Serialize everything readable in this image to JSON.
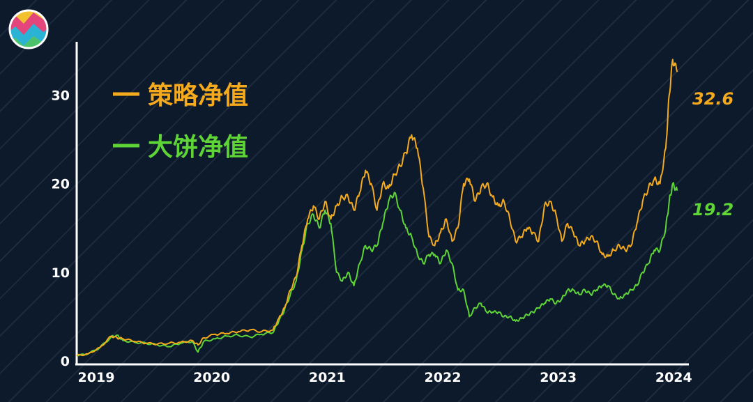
{
  "colors": {
    "background": "#0c1a2c",
    "strategy": "#f5a91c",
    "btc": "#5ed436",
    "axis": "#ffffff"
  },
  "logo": {
    "icon": "colorful-zigzag-logo-icon"
  },
  "chart_data": {
    "type": "line",
    "title": "",
    "xlabel": "",
    "ylabel": "",
    "x_ticks": [
      "2019",
      "2020",
      "2021",
      "2022",
      "2023",
      "2024"
    ],
    "y_ticks": [
      "0",
      "10",
      "20",
      "30"
    ],
    "xlim": [
      2019.0,
      2024.3
    ],
    "ylim": [
      0,
      36
    ],
    "grid": false,
    "legend": "top-left",
    "series": [
      {
        "name": "策略净值",
        "color": "#f5a91c",
        "end_label": "32.6",
        "x": [
          2019.0,
          2019.1,
          2019.2,
          2019.3,
          2019.35,
          2019.4,
          2019.5,
          2019.6,
          2019.7,
          2019.8,
          2019.9,
          2020.0,
          2020.05,
          2020.1,
          2020.2,
          2020.3,
          2020.4,
          2020.5,
          2020.6,
          2020.7,
          2020.75,
          2020.8,
          2020.85,
          2020.9,
          2020.95,
          2021.0,
          2021.05,
          2021.1,
          2021.15,
          2021.2,
          2021.25,
          2021.3,
          2021.35,
          2021.4,
          2021.45,
          2021.5,
          2021.55,
          2021.6,
          2021.65,
          2021.7,
          2021.75,
          2021.8,
          2021.85,
          2021.9,
          2021.95,
          2022.0,
          2022.05,
          2022.1,
          2022.15,
          2022.2,
          2022.25,
          2022.3,
          2022.35,
          2022.4,
          2022.45,
          2022.5,
          2022.55,
          2022.6,
          2022.65,
          2022.7,
          2022.75,
          2022.8,
          2022.85,
          2022.9,
          2022.95,
          2023.0,
          2023.05,
          2023.1,
          2023.15,
          2023.2,
          2023.25,
          2023.3,
          2023.35,
          2023.4,
          2023.45,
          2023.5,
          2023.55,
          2023.6,
          2023.65,
          2023.7,
          2023.75,
          2023.8,
          2023.85,
          2023.9,
          2023.95,
          2024.0,
          2024.05,
          2024.1,
          2024.13,
          2024.16,
          2024.2
        ],
        "y": [
          0.6,
          0.8,
          1.5,
          2.8,
          2.6,
          2.5,
          2.2,
          2.0,
          1.9,
          2.0,
          2.1,
          2.3,
          1.8,
          2.6,
          3.0,
          3.1,
          3.3,
          3.5,
          3.3,
          3.5,
          4.8,
          6.0,
          8.0,
          9.5,
          13.0,
          16.0,
          17.5,
          16.0,
          18.0,
          16.0,
          17.5,
          18.5,
          18.5,
          17.0,
          19.0,
          21.5,
          20.0,
          17.0,
          20.0,
          19.5,
          21.0,
          22.0,
          23.5,
          25.5,
          24.0,
          19.5,
          14.0,
          13.0,
          14.5,
          16.0,
          13.5,
          15.0,
          20.0,
          20.5,
          18.0,
          19.5,
          20.0,
          18.5,
          17.5,
          18.0,
          16.0,
          13.5,
          14.0,
          15.0,
          14.5,
          13.5,
          17.5,
          18.0,
          16.5,
          13.5,
          15.5,
          14.5,
          13.0,
          13.5,
          14.0,
          13.5,
          12.0,
          11.8,
          12.5,
          13.0,
          12.5,
          13.0,
          15.5,
          18.0,
          19.5,
          20.5,
          20.0,
          24.0,
          30.0,
          34.0,
          32.6
        ]
      },
      {
        "name": "大饼净值",
        "color": "#5ed436",
        "end_label": "19.2",
        "x": [
          2019.0,
          2019.1,
          2019.2,
          2019.3,
          2019.35,
          2019.4,
          2019.5,
          2019.6,
          2019.7,
          2019.8,
          2019.9,
          2020.0,
          2020.05,
          2020.1,
          2020.2,
          2020.3,
          2020.4,
          2020.5,
          2020.6,
          2020.7,
          2020.75,
          2020.8,
          2020.85,
          2020.9,
          2020.95,
          2021.0,
          2021.05,
          2021.1,
          2021.15,
          2021.2,
          2021.25,
          2021.3,
          2021.35,
          2021.4,
          2021.45,
          2021.5,
          2021.55,
          2021.6,
          2021.65,
          2021.7,
          2021.75,
          2021.8,
          2021.85,
          2021.9,
          2021.95,
          2022.0,
          2022.05,
          2022.1,
          2022.15,
          2022.2,
          2022.25,
          2022.3,
          2022.35,
          2022.4,
          2022.45,
          2022.5,
          2022.55,
          2022.6,
          2022.65,
          2022.7,
          2022.75,
          2022.8,
          2022.85,
          2022.9,
          2022.95,
          2023.0,
          2023.05,
          2023.1,
          2023.15,
          2023.2,
          2023.25,
          2023.3,
          2023.35,
          2023.4,
          2023.45,
          2023.5,
          2023.55,
          2023.6,
          2023.65,
          2023.7,
          2023.75,
          2023.8,
          2023.85,
          2023.9,
          2023.95,
          2024.0,
          2024.05,
          2024.1,
          2024.13,
          2024.16,
          2024.2
        ],
        "y": [
          0.6,
          0.8,
          1.5,
          2.7,
          2.9,
          2.3,
          2.1,
          2.0,
          1.8,
          1.6,
          2.0,
          2.2,
          1.0,
          2.2,
          2.5,
          2.8,
          2.9,
          2.7,
          3.0,
          3.2,
          4.5,
          5.8,
          7.5,
          9.0,
          12.5,
          15.5,
          16.5,
          15.0,
          17.0,
          15.5,
          10.0,
          9.0,
          10.0,
          8.5,
          11.0,
          13.0,
          12.5,
          13.0,
          15.5,
          18.0,
          19.0,
          17.0,
          15.0,
          14.0,
          12.0,
          11.0,
          12.0,
          12.0,
          11.0,
          12.5,
          11.0,
          8.0,
          8.0,
          5.0,
          6.0,
          6.5,
          5.5,
          5.5,
          5.5,
          5.0,
          5.0,
          4.5,
          4.8,
          5.2,
          5.5,
          6.0,
          6.5,
          7.0,
          6.5,
          7.0,
          8.0,
          8.0,
          7.5,
          8.0,
          7.5,
          8.0,
          8.5,
          8.5,
          7.5,
          7.0,
          7.5,
          8.0,
          8.5,
          10.0,
          11.0,
          12.5,
          12.5,
          15.0,
          18.0,
          20.0,
          19.2
        ]
      }
    ]
  }
}
